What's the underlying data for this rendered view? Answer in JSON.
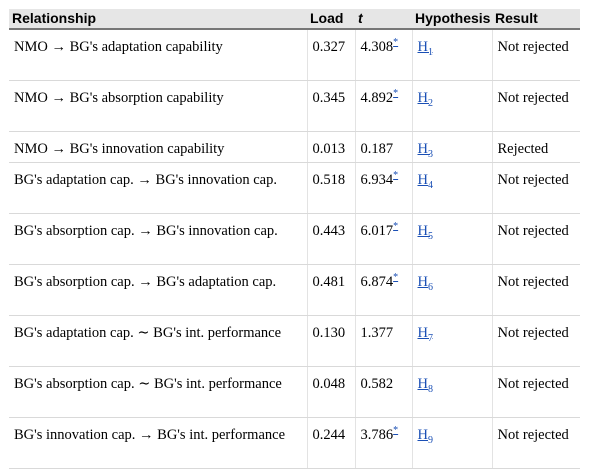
{
  "headers": {
    "relationship": "Relationship",
    "load": "Load",
    "t": "t",
    "hypothesis": "Hypothesis",
    "result": "Result"
  },
  "rows": [
    {
      "relationship": "NMO → BG's adaptation capability",
      "load": "0.327",
      "t": "4.308",
      "sig": "*",
      "hyp": "H",
      "hyp_sub": "1",
      "result": "Not rejected",
      "lines": 2
    },
    {
      "relationship": "NMO → BG's absorption capability",
      "load": "0.345",
      "t": "4.892",
      "sig": "*",
      "hyp": "H",
      "hyp_sub": "2",
      "result": "Not rejected",
      "lines": 2
    },
    {
      "relationship": "NMO → BG's innovation capability",
      "load": "0.013",
      "t": "0.187",
      "sig": "",
      "hyp": "H",
      "hyp_sub": "3",
      "result": "Rejected",
      "lines": 1
    },
    {
      "relationship": "BG's adaptation cap. → BG's innovation cap.",
      "load": "0.518",
      "t": "6.934",
      "sig": "*",
      "hyp": "H",
      "hyp_sub": "4",
      "result": "Not rejected",
      "lines": 2
    },
    {
      "relationship": "BG's absorption cap. → BG's innovation cap.",
      "load": "0.443",
      "t": "6.017",
      "sig": "*",
      "hyp": "H",
      "hyp_sub": "5",
      "result": "Not rejected",
      "lines": 2
    },
    {
      "relationship": "BG's absorption cap. → BG's adaptation cap.",
      "load": "0.481",
      "t": "6.874",
      "sig": "*",
      "hyp": "H",
      "hyp_sub": "6",
      "result": "Not rejected",
      "lines": 2
    },
    {
      "relationship": "BG's adaptation cap. ∼ BG's int. performance",
      "load": "0.130",
      "t": "1.377",
      "sig": "",
      "hyp": "H",
      "hyp_sub": "7",
      "result": "Not rejected",
      "lines": 2
    },
    {
      "relationship": "BG's absorption cap. ∼ BG's int. performance",
      "load": "0.048",
      "t": "0.582",
      "sig": "",
      "hyp": "H",
      "hyp_sub": "8",
      "result": "Not rejected",
      "lines": 2
    },
    {
      "relationship": "BG's innovation cap. → BG's int. performance",
      "load": "0.244",
      "t": "3.786",
      "sig": "*",
      "hyp": "H",
      "hyp_sub": "9",
      "result": "Not rejected",
      "lines": 2
    }
  ]
}
